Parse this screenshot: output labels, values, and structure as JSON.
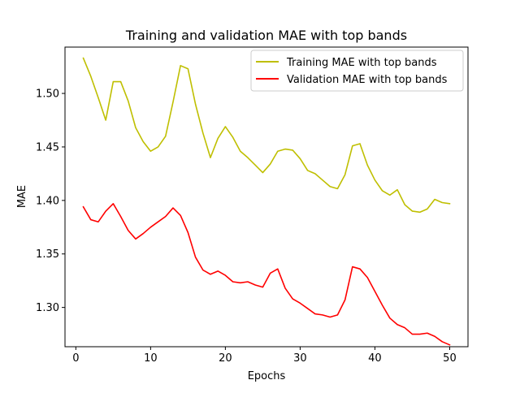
{
  "chart_data": {
    "type": "line",
    "title": "Training and validation MAE with top bands",
    "xlabel": "Epochs",
    "ylabel": "MAE",
    "xlim": [
      -1.45,
      52.45
    ],
    "ylim": [
      1.2633,
      1.5433
    ],
    "xticks": [
      0,
      10,
      20,
      30,
      40,
      50
    ],
    "xtick_labels": [
      "0",
      "10",
      "20",
      "30",
      "40",
      "50"
    ],
    "yticks": [
      1.3,
      1.35,
      1.4,
      1.45,
      1.5
    ],
    "ytick_labels": [
      "1.30",
      "1.35",
      "1.40",
      "1.45",
      "1.50"
    ],
    "grid": false,
    "legend_position": "upper-right",
    "x": [
      1,
      2,
      3,
      4,
      5,
      6,
      7,
      8,
      9,
      10,
      11,
      12,
      13,
      14,
      15,
      16,
      17,
      18,
      19,
      20,
      21,
      22,
      23,
      24,
      25,
      26,
      27,
      28,
      29,
      30,
      31,
      32,
      33,
      34,
      35,
      36,
      37,
      38,
      39,
      40,
      41,
      42,
      43,
      44,
      45,
      46,
      47,
      48,
      49,
      50
    ],
    "series": [
      {
        "name": "Training MAE with top bands",
        "color": "#bfbf00",
        "values": [
          1.533,
          1.516,
          1.496,
          1.475,
          1.511,
          1.511,
          1.493,
          1.468,
          1.455,
          1.446,
          1.45,
          1.46,
          1.492,
          1.526,
          1.523,
          1.49,
          1.463,
          1.44,
          1.458,
          1.469,
          1.459,
          1.446,
          1.44,
          1.433,
          1.426,
          1.434,
          1.446,
          1.448,
          1.447,
          1.439,
          1.428,
          1.425,
          1.419,
          1.413,
          1.411,
          1.424,
          1.451,
          1.453,
          1.433,
          1.419,
          1.409,
          1.405,
          1.41,
          1.396,
          1.39,
          1.389,
          1.392,
          1.401,
          1.398,
          1.397
        ]
      },
      {
        "name": "Validation MAE with top bands",
        "color": "#ff0000",
        "values": [
          1.394,
          1.382,
          1.38,
          1.39,
          1.397,
          1.385,
          1.372,
          1.364,
          1.369,
          1.375,
          1.38,
          1.385,
          1.393,
          1.386,
          1.37,
          1.347,
          1.335,
          1.331,
          1.334,
          1.33,
          1.324,
          1.323,
          1.324,
          1.321,
          1.319,
          1.332,
          1.336,
          1.318,
          1.308,
          1.304,
          1.299,
          1.294,
          1.293,
          1.291,
          1.293,
          1.307,
          1.338,
          1.336,
          1.328,
          1.315,
          1.302,
          1.29,
          1.284,
          1.281,
          1.275,
          1.275,
          1.276,
          1.273,
          1.268,
          1.265
        ]
      }
    ]
  }
}
